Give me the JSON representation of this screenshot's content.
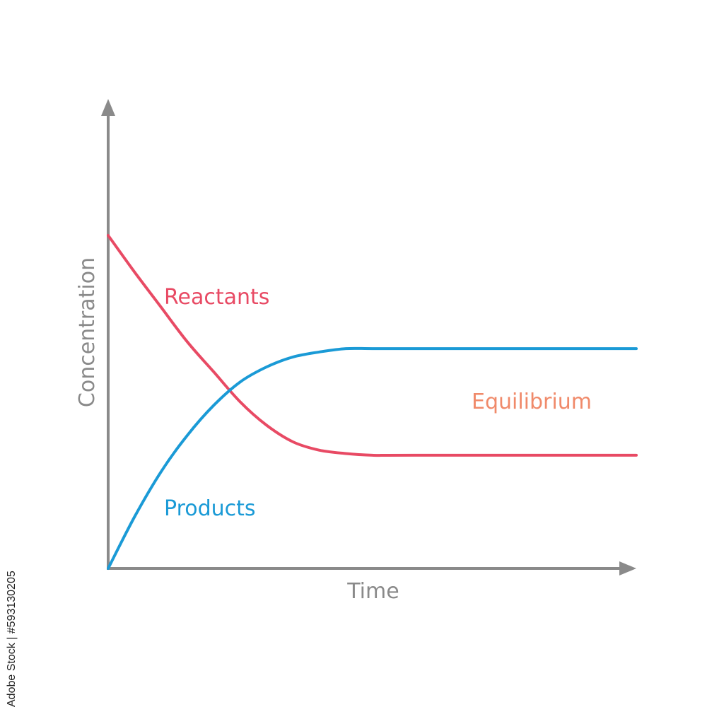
{
  "watermark_text": "Adobe Stock | #593130205",
  "chart_data": {
    "type": "line",
    "xlabel": "Time",
    "ylabel": "Concentration",
    "xlim": [
      0,
      10
    ],
    "ylim": [
      0,
      10
    ],
    "grid": false,
    "legend": "none",
    "annotations": [
      {
        "text": "Equilibrium",
        "color": "#f08a6a"
      }
    ],
    "series": [
      {
        "name": "Reactants",
        "color": "#e84a64",
        "x": [
          0,
          0.5,
          1,
          1.5,
          2,
          2.5,
          3,
          3.5,
          4,
          4.5,
          5,
          5.8,
          10
        ],
        "y": [
          10,
          8.9,
          7.85,
          6.8,
          5.9,
          5.0,
          4.3,
          3.8,
          3.55,
          3.45,
          3.4,
          3.4,
          3.4
        ]
      },
      {
        "name": "Products",
        "color": "#1a9ad6",
        "x": [
          0,
          0.5,
          1,
          1.5,
          2,
          2.5,
          3,
          3.5,
          4,
          4.5,
          5,
          5.8,
          10
        ],
        "y": [
          0,
          1.55,
          2.9,
          4.0,
          4.9,
          5.6,
          6.05,
          6.35,
          6.5,
          6.6,
          6.6,
          6.6,
          6.6
        ]
      }
    ]
  }
}
